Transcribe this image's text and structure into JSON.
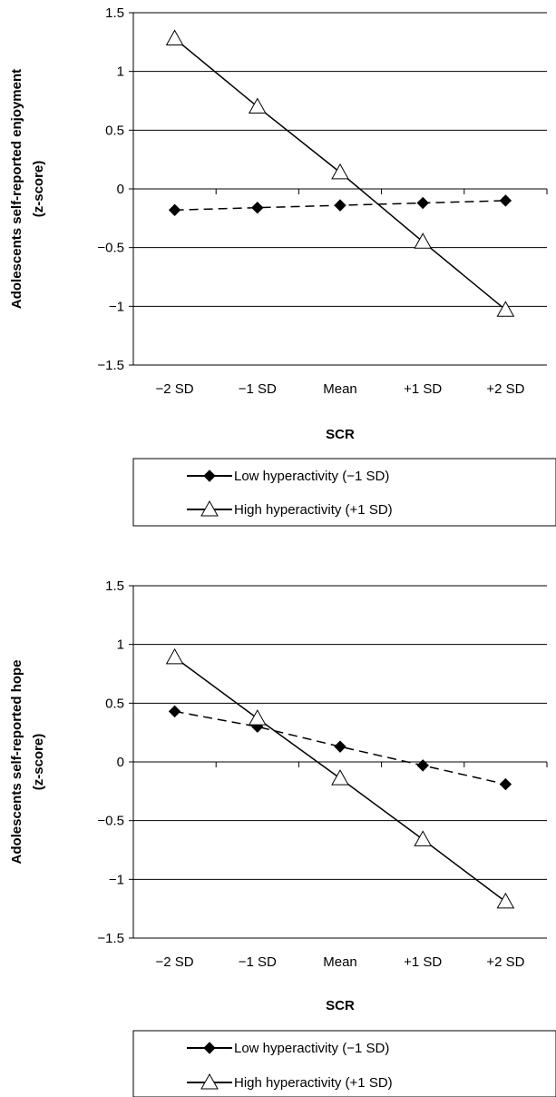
{
  "chart_data": [
    {
      "type": "line",
      "categories": [
        "−2 SD",
        "−1 SD",
        "Mean",
        "+1 SD",
        "+2 SD"
      ],
      "xlabel": "SCR",
      "ylabel_line1": "Adolescents self-reported enjoyment",
      "ylabel_line2": "(z-score)",
      "ylim": [
        -1.5,
        1.5
      ],
      "yticks": [
        1.5,
        1,
        0.5,
        0,
        -0.5,
        -1,
        -1.5
      ],
      "ytick_labels": [
        "1.5",
        "1",
        "0.5",
        "0",
        "−0.5",
        "−1",
        "−1.5"
      ],
      "grid": true,
      "legend_position": "bottom",
      "series": [
        {
          "name": "Low hyperactivity (−1 SD)",
          "values": [
            -0.18,
            -0.16,
            -0.14,
            -0.12,
            -0.1
          ],
          "marker": "filled-diamond",
          "line": "dashed",
          "color": "#000000"
        },
        {
          "name": "High hyperactivity (+1 SD)",
          "values": [
            1.28,
            0.7,
            0.14,
            -0.45,
            -1.03
          ],
          "marker": "open-triangle",
          "line": "solid",
          "color": "#000000"
        }
      ]
    },
    {
      "type": "line",
      "categories": [
        "−2 SD",
        "−1 SD",
        "Mean",
        "+1 SD",
        "+2 SD"
      ],
      "xlabel": "SCR",
      "ylabel_line1": "Adolescents self-reported hope",
      "ylabel_line2": "(z-score)",
      "ylim": [
        -1.5,
        1.5
      ],
      "yticks": [
        1.5,
        1,
        0.5,
        0,
        -0.5,
        -1,
        -1.5
      ],
      "ytick_labels": [
        "1.5",
        "1",
        "0.5",
        "0",
        "−0.5",
        "−1",
        "−1.5"
      ],
      "grid": true,
      "legend_position": "bottom",
      "series": [
        {
          "name": "Low hyperactivity (−1 SD)",
          "values": [
            0.43,
            0.3,
            0.13,
            -0.03,
            -0.19
          ],
          "marker": "filled-diamond",
          "line": "dashed",
          "color": "#000000"
        },
        {
          "name": "High hyperactivity (+1 SD)",
          "values": [
            0.89,
            0.37,
            -0.14,
            -0.66,
            -1.19
          ],
          "marker": "open-triangle",
          "line": "solid",
          "color": "#000000"
        }
      ]
    }
  ]
}
